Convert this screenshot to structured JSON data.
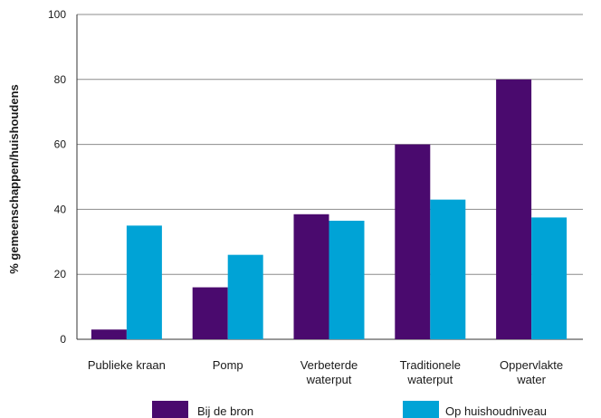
{
  "chart_data": {
    "type": "bar",
    "categories": [
      [
        "Publieke kraan"
      ],
      [
        "Pomp"
      ],
      [
        "Verbeterde",
        "waterput"
      ],
      [
        "Traditionele",
        "waterput"
      ],
      [
        "Oppervlakte",
        "water"
      ]
    ],
    "series": [
      {
        "name": "Bij de bron",
        "color": "#4a0a6e",
        "values": [
          3,
          16,
          38.5,
          60,
          80
        ]
      },
      {
        "name": "Op huishoudniveau",
        "color": "#00a3d6",
        "values": [
          35,
          26,
          36.5,
          43,
          37.5
        ]
      }
    ],
    "xlabel": "",
    "ylabel": "% gemeenschappen/huishoudens",
    "ylim": [
      0,
      100
    ],
    "yticks": [
      0,
      20,
      40,
      60,
      80,
      100
    ],
    "grid": true,
    "legend_position": "bottom"
  }
}
